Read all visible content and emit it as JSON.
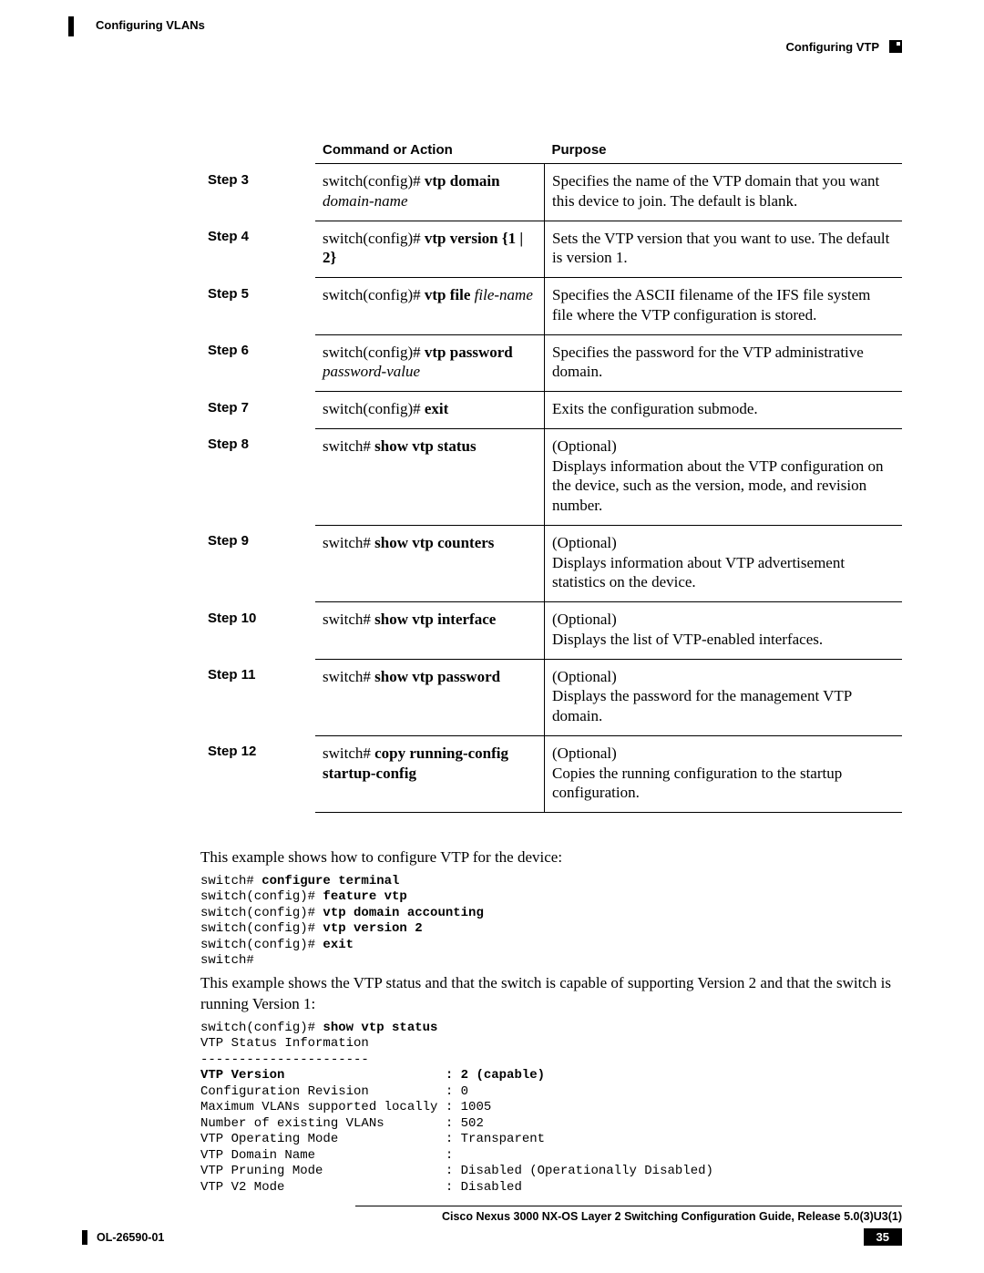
{
  "header": {
    "left_label": "Configuring VLANs",
    "right_label": "Configuring VTP"
  },
  "table": {
    "headers": {
      "step": "",
      "command": "Command or Action",
      "purpose": "Purpose"
    },
    "rows": [
      {
        "step": "Step 3",
        "cmd_prefix": "switch(config)# ",
        "cmd_bold": "vtp domain",
        "cmd_ital": "domain-name",
        "purpose": "Specifies the name of the VTP domain that you want this device to join. The default is blank."
      },
      {
        "step": "Step 4",
        "cmd_prefix": "switch(config)# ",
        "cmd_bold": "vtp version {1 | 2}",
        "cmd_ital": "",
        "purpose": "Sets the VTP version that you want to use. The default is version 1."
      },
      {
        "step": "Step 5",
        "cmd_prefix": "switch(config)# ",
        "cmd_bold": "vtp file ",
        "cmd_ital": "file-name",
        "purpose": "Specifies the ASCII filename of the IFS file system file where the VTP configuration is stored."
      },
      {
        "step": "Step 6",
        "cmd_prefix": "switch(config)# ",
        "cmd_bold": "vtp password",
        "cmd_ital": "password-value",
        "purpose": "Specifies the password for the VTP administrative domain."
      },
      {
        "step": "Step 7",
        "cmd_prefix": "switch(config)# ",
        "cmd_bold": "exit",
        "cmd_ital": "",
        "purpose": "Exits the configuration submode."
      },
      {
        "step": "Step 8",
        "cmd_prefix": "switch# ",
        "cmd_bold": "show vtp status",
        "cmd_ital": "",
        "purpose": "(Optional)\nDisplays information about the VTP configuration on the device, such as the version, mode, and revision number."
      },
      {
        "step": "Step 9",
        "cmd_prefix": "switch# ",
        "cmd_bold": "show vtp counters",
        "cmd_ital": "",
        "purpose": "(Optional)\nDisplays information about VTP advertisement statistics on the device."
      },
      {
        "step": "Step 10",
        "cmd_prefix": "switch# ",
        "cmd_bold": "show vtp interface",
        "cmd_ital": "",
        "purpose": "(Optional)\nDisplays the list of VTP-enabled interfaces."
      },
      {
        "step": "Step 11",
        "cmd_prefix": "switch# ",
        "cmd_bold": "show vtp password",
        "cmd_ital": "",
        "purpose": "(Optional)\nDisplays the password for the management VTP domain."
      },
      {
        "step": "Step 12",
        "cmd_prefix": "switch# ",
        "cmd_bold": "copy running-config startup-config",
        "cmd_ital": "",
        "purpose": "(Optional)\nCopies the running configuration to the startup configuration."
      }
    ]
  },
  "para1": "This example shows how to configure VTP for the device:",
  "code1": "switch# <b>configure terminal</b>\nswitch(config)# <b>feature vtp</b>\nswitch(config)# <b>vtp domain accounting</b>\nswitch(config)# <b>vtp version 2</b>\nswitch(config)# <b>exit</b>\nswitch#",
  "para2": "This example shows the VTP status and that the switch is capable of supporting Version 2 and that the switch is running Version 1:",
  "code2": "switch(config)# <b>show vtp status</b>\nVTP Status Information\n----------------------\n<b>VTP Version                     : 2 (capable)</b>\nConfiguration Revision          : 0\nMaximum VLANs supported locally : 1005\nNumber of existing VLANs        : 502\nVTP Operating Mode              : Transparent\nVTP Domain Name                 :\nVTP Pruning Mode                : Disabled (Operationally Disabled)\nVTP V2 Mode                     : Disabled",
  "footer": {
    "title": "Cisco Nexus 3000 NX-OS Layer 2 Switching Configuration Guide, Release 5.0(3)U3(1)",
    "code": "OL-26590-01",
    "page": "35"
  }
}
